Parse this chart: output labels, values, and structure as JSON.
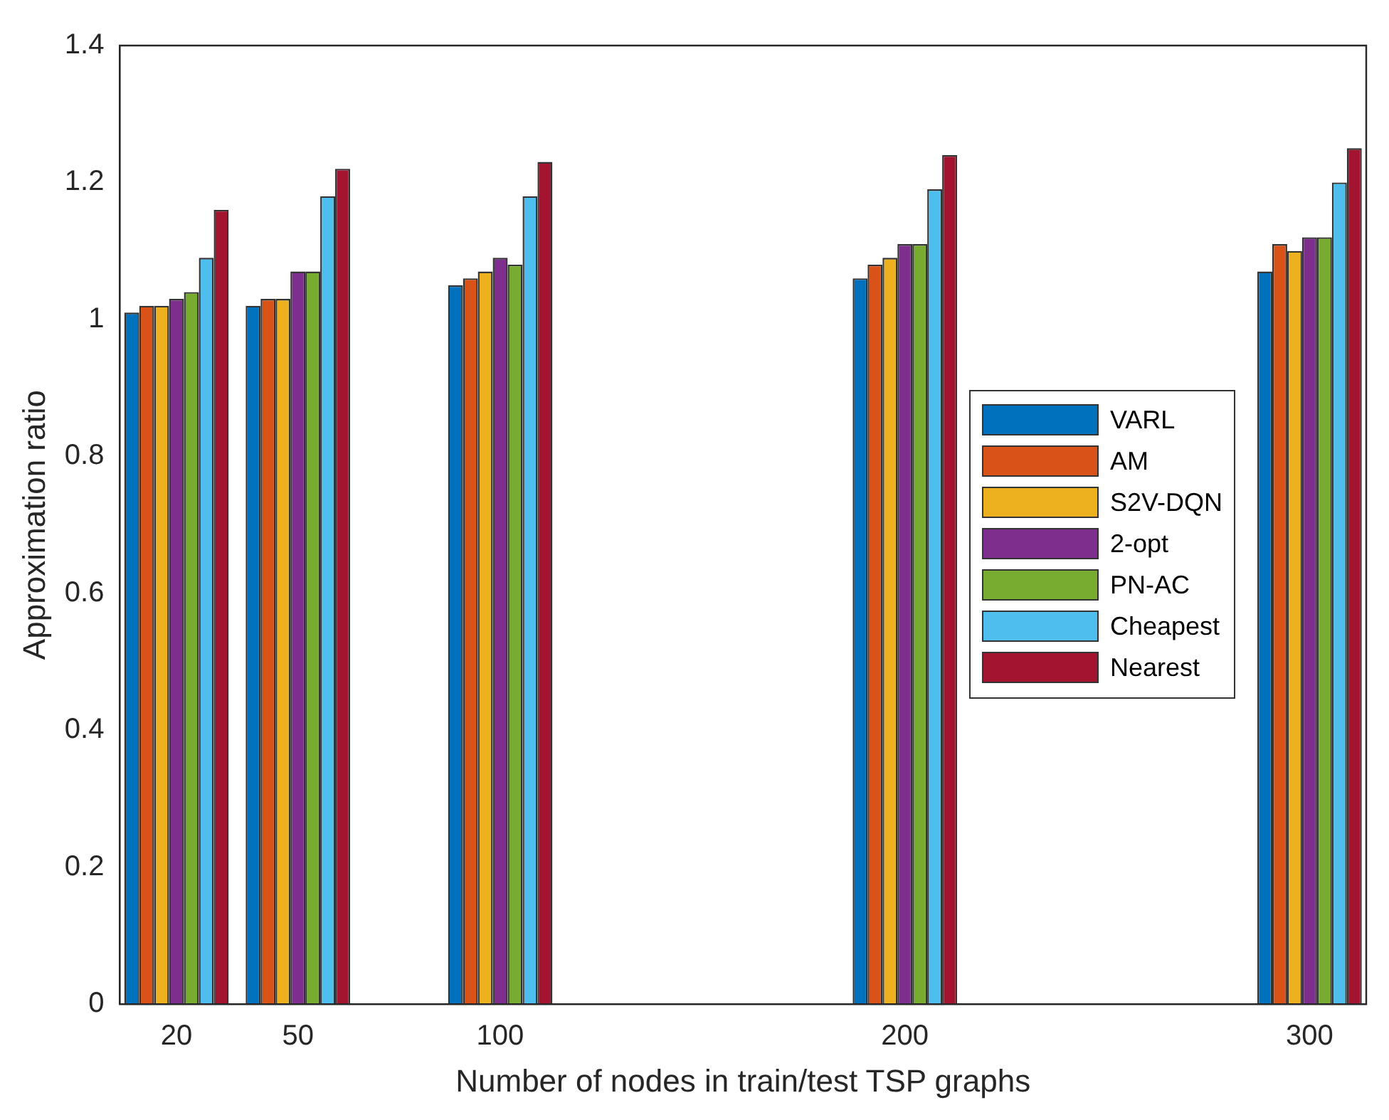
{
  "chart_data": {
    "type": "bar",
    "xlabel": "Number of nodes in train/test TSP graphs",
    "ylabel": "Approximation ratio",
    "x": [
      20,
      50,
      100,
      200,
      300
    ],
    "series": [
      {
        "name": "VARL",
        "color": "#0072bd",
        "values": [
          1.01,
          1.02,
          1.05,
          1.06,
          1.07
        ]
      },
      {
        "name": "AM",
        "color": "#d95319",
        "values": [
          1.02,
          1.03,
          1.06,
          1.08,
          1.11
        ]
      },
      {
        "name": "S2V-DQN",
        "color": "#edb120",
        "values": [
          1.02,
          1.03,
          1.07,
          1.09,
          1.1
        ]
      },
      {
        "name": "2-opt",
        "color": "#7e2f8e",
        "values": [
          1.03,
          1.07,
          1.09,
          1.11,
          1.12
        ]
      },
      {
        "name": "PN-AC",
        "color": "#77ac30",
        "values": [
          1.04,
          1.07,
          1.08,
          1.11,
          1.12
        ]
      },
      {
        "name": "Cheapest",
        "color": "#4dbeee",
        "values": [
          1.09,
          1.18,
          1.18,
          1.19,
          1.2
        ]
      },
      {
        "name": "Nearest",
        "color": "#a2142f",
        "values": [
          1.16,
          1.22,
          1.23,
          1.24,
          1.25
        ]
      }
    ],
    "xlim": [
      6,
      314
    ],
    "xticks": [
      20,
      50,
      100,
      200,
      300
    ],
    "ylim": [
      0,
      1.4
    ],
    "yticks": [
      0,
      0.2,
      0.4,
      0.6,
      0.8,
      1,
      1.2,
      1.4
    ],
    "grid": false,
    "legend": "right"
  }
}
